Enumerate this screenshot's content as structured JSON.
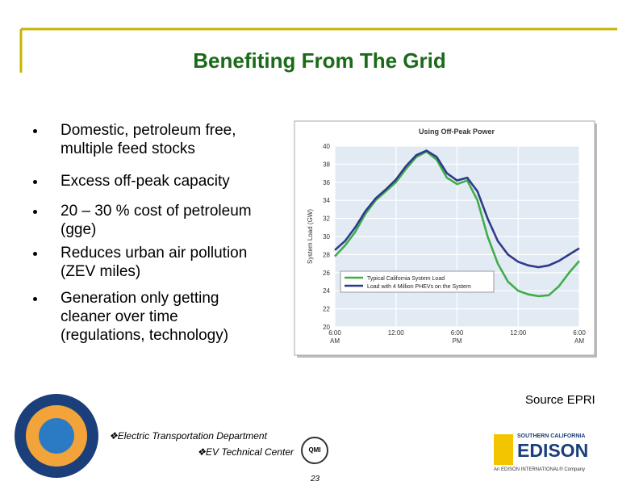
{
  "header": {
    "title": "Benefiting From The Grid"
  },
  "bullets": [
    "Domestic, petroleum free,\nmultiple feed stocks",
    "Excess off-peak capacity",
    "20 – 30 % cost of petroleum\n(gge)",
    "Reduces urban air pollution\n(ZEV  miles)",
    "Generation only getting\ncleaner over time\n(regulations, technology)"
  ],
  "chart_data": {
    "type": "line",
    "title": "Using Off-Peak Power",
    "ylabel": "System Load (GW)",
    "x": [
      0,
      1,
      2,
      3,
      4,
      5,
      6,
      7,
      8,
      9,
      10,
      11,
      12,
      13,
      14,
      15,
      16,
      17,
      18,
      19,
      20,
      21,
      22,
      23,
      24
    ],
    "xlim": [
      0,
      24
    ],
    "xticks": [
      {
        "value": 0,
        "label": "6:00\nAM"
      },
      {
        "value": 6,
        "label": "12:00"
      },
      {
        "value": 12,
        "label": "6:00\nPM"
      },
      {
        "value": 18,
        "label": "12:00"
      },
      {
        "value": 24,
        "label": "6:00\nAM"
      }
    ],
    "ylim": [
      20,
      40
    ],
    "yticks": [
      20,
      22,
      24,
      26,
      28,
      30,
      32,
      34,
      36,
      38,
      40
    ],
    "grid": true,
    "series": [
      {
        "name": "Typical California System Load",
        "color": "#3fae49",
        "values": [
          27.8,
          29,
          30.5,
          32.5,
          34,
          35,
          36,
          37.5,
          38.8,
          39.4,
          38.5,
          36.5,
          35.8,
          36.2,
          34,
          30,
          27,
          25,
          24,
          23.6,
          23.4,
          23.5,
          24.5,
          26,
          27.3
        ]
      },
      {
        "name": "Load with 4 Million PHEVs on the System",
        "color": "#2e3a8c",
        "values": [
          28.5,
          29.5,
          31,
          32.8,
          34.2,
          35.2,
          36.3,
          37.8,
          39,
          39.5,
          38.8,
          37,
          36.2,
          36.5,
          35,
          32,
          29.5,
          28,
          27.2,
          26.8,
          26.6,
          26.8,
          27.3,
          28,
          28.7
        ]
      }
    ]
  },
  "source": "Source EPRI",
  "footer": {
    "department": "❖Electric Transportation Department",
    "center": "❖EV Technical Center",
    "page": "23",
    "qmi": "QMI",
    "edison_top": "SOUTHERN CALIFORNIA",
    "edison": "EDISON",
    "edison_sub": "An EDISON INTERNATIONAL® Company"
  }
}
